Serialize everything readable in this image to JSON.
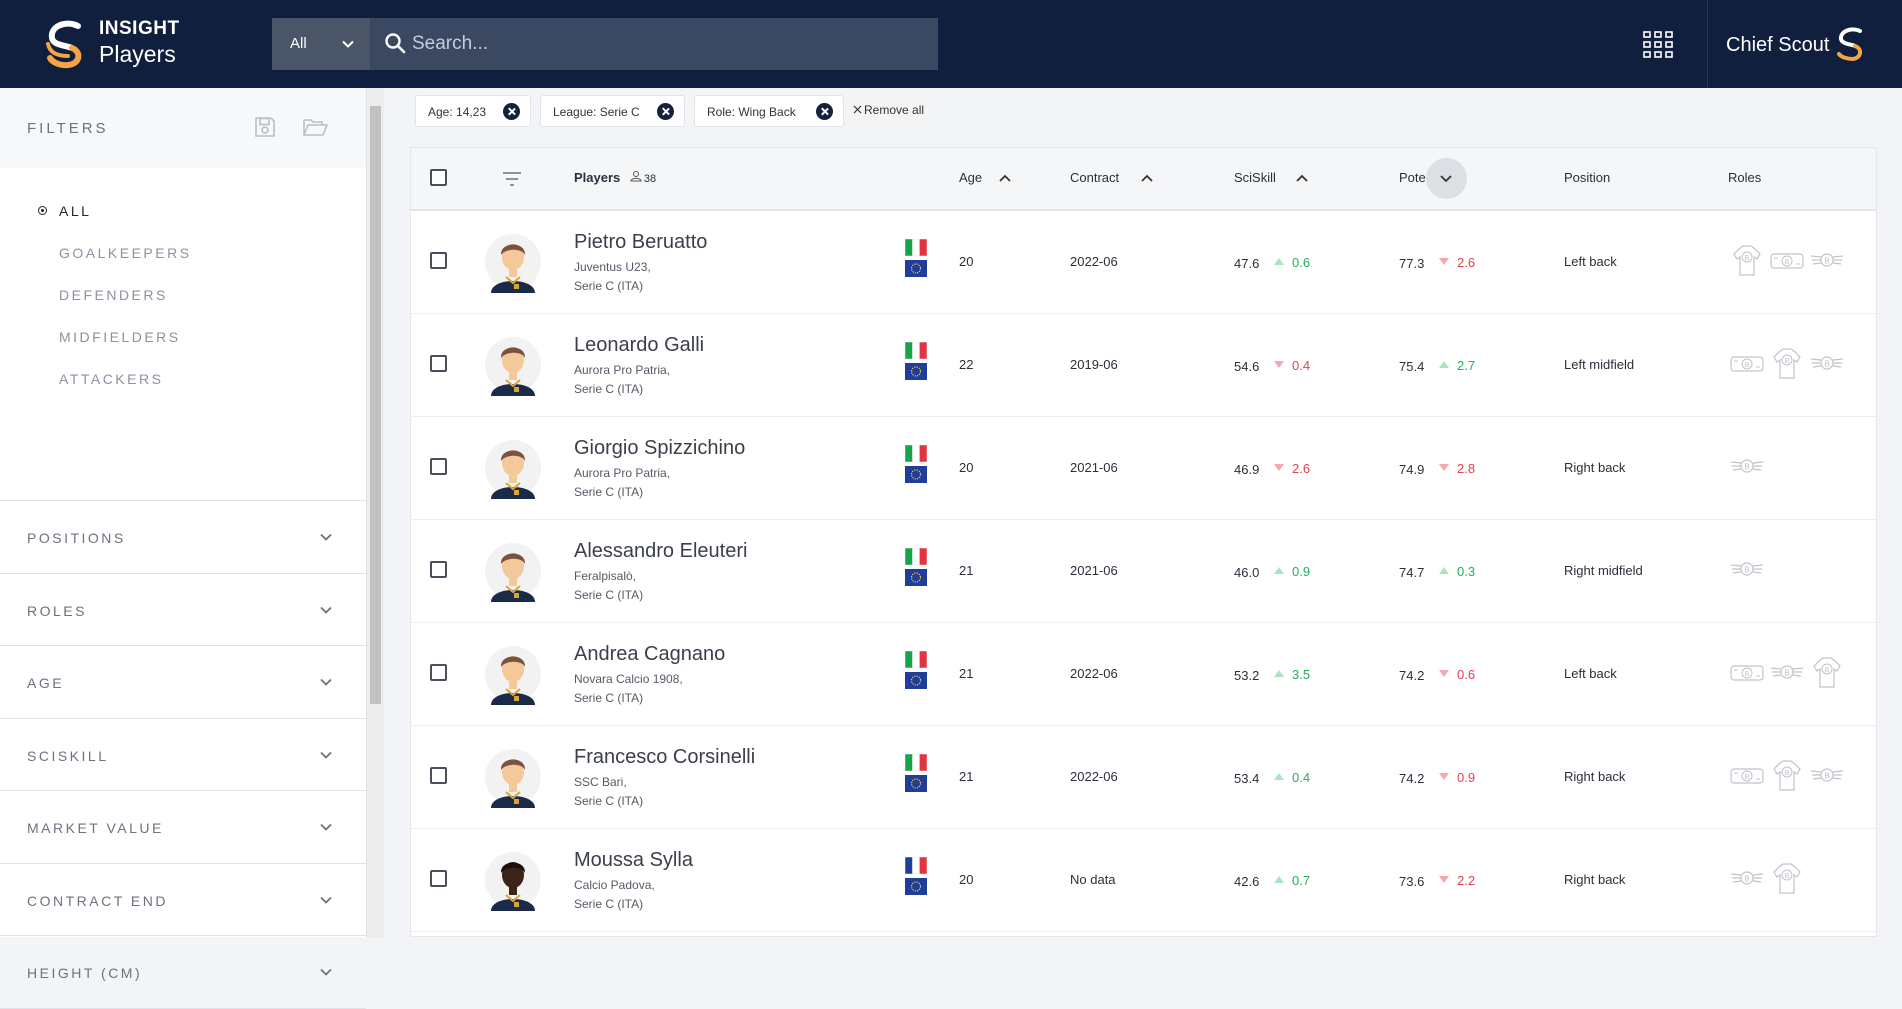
{
  "header": {
    "brand_top": "INSIGHT",
    "brand_bottom": "Players",
    "search_scope": "All",
    "search_placeholder": "Search...",
    "user_name": "Chief Scout"
  },
  "colors": {
    "navbar": "#0f1f3d",
    "accent": "#f5a445",
    "up": "#25b05a",
    "down": "#e4414e"
  },
  "sidebar": {
    "title": "FILTERS",
    "categories": [
      "ALL",
      "GOALKEEPERS",
      "DEFENDERS",
      "MIDFIELDERS",
      "ATTACKERS"
    ],
    "active_category": "ALL",
    "accordions": [
      "POSITIONS",
      "ROLES",
      "AGE",
      "SCISKILL",
      "MARKET VALUE",
      "CONTRACT END",
      "HEIGHT (CM)"
    ]
  },
  "chips": [
    "Age: 14,23",
    "League: Serie C",
    "Role: Wing Back"
  ],
  "remove_all": "Remove all",
  "table": {
    "headers": {
      "players": "Players",
      "count": "38",
      "age": "Age",
      "contract": "Contract",
      "sciskill": "SciSkill",
      "potential": "Potential",
      "position": "Position",
      "roles": "Roles"
    },
    "rows": [
      {
        "name": "Pietro Beruatto",
        "club": "Juventus U23,",
        "league": "Serie C (ITA)",
        "nat": "italy",
        "age": "20",
        "contract": "2022-06",
        "sciskill": "47.6",
        "sciskill_dir": "up",
        "sciskill_delta": "0.6",
        "potential": "77.3",
        "potential_dir": "down",
        "potential_delta": "2.6",
        "position": "Left back",
        "roles": [
          "shirt",
          "bubble",
          "wing"
        ],
        "avatar": "light"
      },
      {
        "name": "Leonardo Galli",
        "club": "Aurora Pro Patria,",
        "league": "Serie C (ITA)",
        "nat": "italy",
        "age": "22",
        "contract": "2019-06",
        "sciskill": "54.6",
        "sciskill_dir": "down",
        "sciskill_delta": "0.4",
        "potential": "75.4",
        "potential_dir": "up",
        "potential_delta": "2.7",
        "position": "Left midfield",
        "roles": [
          "bubble",
          "shirt",
          "wing"
        ],
        "avatar": "light"
      },
      {
        "name": "Giorgio Spizzichino",
        "club": "Aurora Pro Patria,",
        "league": "Serie C (ITA)",
        "nat": "italy",
        "age": "20",
        "contract": "2021-06",
        "sciskill": "46.9",
        "sciskill_dir": "down",
        "sciskill_delta": "2.6",
        "potential": "74.9",
        "potential_dir": "down",
        "potential_delta": "2.8",
        "position": "Right back",
        "roles": [
          "wing"
        ],
        "avatar": "light"
      },
      {
        "name": "Alessandro Eleuteri",
        "club": "Feralpisalò,",
        "league": "Serie C (ITA)",
        "nat": "italy",
        "age": "21",
        "contract": "2021-06",
        "sciskill": "46.0",
        "sciskill_dir": "up",
        "sciskill_delta": "0.9",
        "potential": "74.7",
        "potential_dir": "up",
        "potential_delta": "0.3",
        "position": "Right midfield",
        "roles": [
          "wing"
        ],
        "avatar": "light"
      },
      {
        "name": "Andrea Cagnano",
        "club": "Novara Calcio 1908,",
        "league": "Serie C (ITA)",
        "nat": "italy",
        "age": "21",
        "contract": "2022-06",
        "sciskill": "53.2",
        "sciskill_dir": "up",
        "sciskill_delta": "3.5",
        "potential": "74.2",
        "potential_dir": "down",
        "potential_delta": "0.6",
        "position": "Left back",
        "roles": [
          "bubble",
          "wing",
          "shirt"
        ],
        "avatar": "light"
      },
      {
        "name": "Francesco Corsinelli",
        "club": "SSC Bari,",
        "league": "Serie C (ITA)",
        "nat": "italy",
        "age": "21",
        "contract": "2022-06",
        "sciskill": "53.4",
        "sciskill_dir": "up",
        "sciskill_delta": "0.4",
        "potential": "74.2",
        "potential_dir": "down",
        "potential_delta": "0.9",
        "position": "Right back",
        "roles": [
          "bubble",
          "shirt",
          "wing"
        ],
        "avatar": "light"
      },
      {
        "name": "Moussa Sylla",
        "club": "Calcio Padova,",
        "league": "Serie C (ITA)",
        "nat": "france",
        "age": "20",
        "contract": "No data",
        "sciskill": "42.6",
        "sciskill_dir": "up",
        "sciskill_delta": "0.7",
        "potential": "73.6",
        "potential_dir": "down",
        "potential_delta": "2.2",
        "position": "Right back",
        "roles": [
          "wing",
          "shirt"
        ],
        "avatar": "dark"
      }
    ]
  }
}
